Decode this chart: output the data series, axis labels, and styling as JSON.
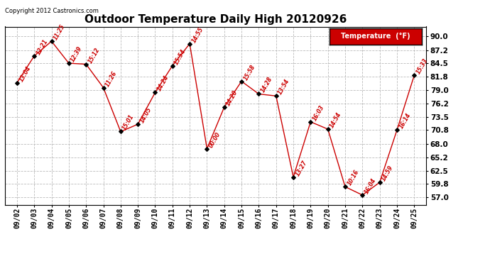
{
  "title": "Outdoor Temperature Daily High 20120926",
  "copyright_text": "Copyright 2012 Castronics.com",
  "legend_label": "Temperature  (°F)",
  "dates": [
    "09/02",
    "09/03",
    "09/04",
    "09/05",
    "09/06",
    "09/07",
    "09/08",
    "09/09",
    "09/10",
    "09/11",
    "09/12",
    "09/13",
    "09/14",
    "09/15",
    "09/16",
    "09/17",
    "09/18",
    "09/19",
    "09/20",
    "09/21",
    "09/22",
    "09/23",
    "09/24",
    "09/25"
  ],
  "temperatures": [
    80.5,
    86.0,
    89.0,
    84.5,
    84.3,
    79.5,
    70.5,
    72.0,
    78.5,
    84.0,
    88.5,
    67.0,
    75.5,
    80.8,
    78.2,
    77.8,
    61.2,
    72.5,
    71.0,
    59.2,
    57.5,
    60.1,
    70.8,
    82.0
  ],
  "time_labels": [
    "13:04",
    "12:21",
    "11:25",
    "12:39",
    "15:12",
    "11:26",
    "15:01",
    "14:05",
    "14:24",
    "15:54",
    "14:55",
    "00:00",
    "14:20",
    "15:58",
    "14:28",
    "13:54",
    "13:27",
    "16:03",
    "14:54",
    "10:16",
    "16:04",
    "14:59",
    "16:14",
    "15:33"
  ],
  "line_color": "#cc0000",
  "marker_color": "#000000",
  "background_color": "#ffffff",
  "grid_color": "#bbbbbb",
  "title_fontsize": 11,
  "yticks": [
    57.0,
    59.8,
    62.5,
    65.2,
    68.0,
    70.8,
    73.5,
    76.2,
    79.0,
    81.8,
    84.5,
    87.2,
    90.0
  ],
  "ylim": [
    55.5,
    92.0
  ],
  "legend_bg": "#cc0000",
  "legend_text_color": "#ffffff"
}
